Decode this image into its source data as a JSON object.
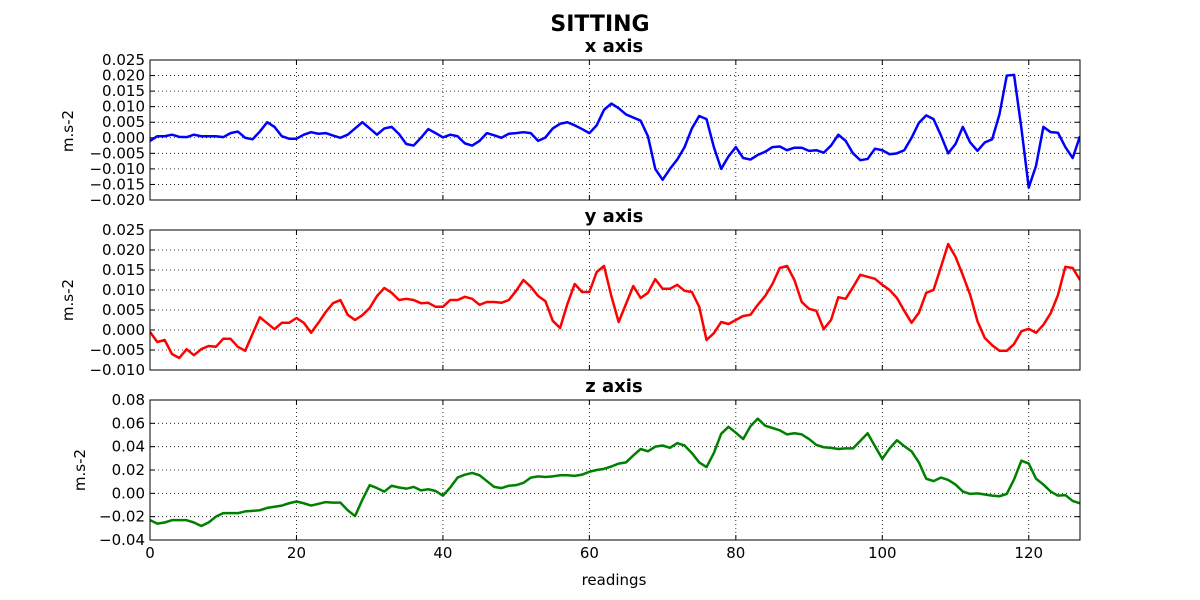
{
  "figure": {
    "title": "SITTING",
    "xlabel": "readings"
  },
  "chart_data": [
    {
      "type": "line",
      "title": "x axis",
      "xlabel": "",
      "ylabel": "m.s-2",
      "xlim": [
        0,
        127
      ],
      "ylim": [
        -0.02,
        0.025
      ],
      "grid": true,
      "xticks": [
        0,
        20,
        40,
        60,
        80,
        100,
        120
      ],
      "xticklabels": [],
      "yticks": [
        -0.02,
        -0.015,
        -0.01,
        -0.005,
        0.0,
        0.005,
        0.01,
        0.015,
        0.02,
        0.025
      ],
      "yticklabels": [
        "−0.020",
        "−0.015",
        "−0.010",
        "−0.005",
        "0.000",
        "0.005",
        "0.010",
        "0.015",
        "0.020",
        "0.025"
      ],
      "series": [
        {
          "color": "#0000ff",
          "x": [
            0,
            1,
            2,
            3,
            4,
            5,
            6,
            7,
            8,
            9,
            10,
            11,
            12,
            13,
            14,
            15,
            16,
            17,
            18,
            19,
            20,
            21,
            22,
            23,
            24,
            25,
            26,
            27,
            28,
            29,
            30,
            31,
            32,
            33,
            34,
            35,
            36,
            37,
            38,
            39,
            40,
            41,
            42,
            43,
            44,
            45,
            46,
            47,
            48,
            49,
            50,
            51,
            52,
            53,
            54,
            55,
            56,
            57,
            58,
            59,
            60,
            61,
            62,
            63,
            64,
            65,
            66,
            67,
            68,
            69,
            70,
            71,
            72,
            73,
            74,
            75,
            76,
            77,
            78,
            79,
            80,
            81,
            82,
            83,
            84,
            85,
            86,
            87,
            88,
            89,
            90,
            91,
            92,
            93,
            94,
            95,
            96,
            97,
            98,
            99,
            100,
            101,
            102,
            103,
            104,
            105,
            106,
            107,
            108,
            109,
            110,
            111,
            112,
            113,
            114,
            115,
            116,
            117,
            118,
            119,
            120,
            121,
            122,
            123,
            124,
            125,
            126,
            127
          ],
          "values": [
            -0.001,
            0.0005,
            0.0005,
            0.001,
            0.0003,
            0.0002,
            0.001,
            0.0005,
            0.0005,
            0.0005,
            0.0002,
            0.0015,
            0.002,
            0.0,
            -0.0005,
            0.002,
            0.005,
            0.0035,
            0.0005,
            -0.0003,
            -0.0003,
            0.001,
            0.0018,
            0.0013,
            0.0015,
            0.0007,
            0.0,
            0.001,
            0.003,
            0.005,
            0.003,
            0.001,
            0.003,
            0.0035,
            0.0012,
            -0.002,
            -0.0025,
            0.0,
            0.0028,
            0.0015,
            0.0001,
            0.001,
            0.0005,
            -0.0018,
            -0.0025,
            -0.001,
            0.0015,
            0.0008,
            0.0,
            0.0013,
            0.0015,
            0.0018,
            0.0015,
            -0.001,
            0.0001,
            0.003,
            0.0045,
            0.005,
            0.004,
            0.0028,
            0.0015,
            0.004,
            0.009,
            0.011,
            0.0095,
            0.0075,
            0.0065,
            0.0055,
            0.0005,
            -0.01,
            -0.0135,
            -0.01,
            -0.007,
            -0.003,
            0.003,
            0.007,
            0.006,
            -0.003,
            -0.01,
            -0.006,
            -0.003,
            -0.0065,
            -0.007,
            -0.0055,
            -0.0045,
            -0.003,
            -0.0028,
            -0.004,
            -0.0032,
            -0.0032,
            -0.0042,
            -0.004,
            -0.0048,
            -0.0025,
            0.001,
            -0.001,
            -0.005,
            -0.0072,
            -0.0068,
            -0.0035,
            -0.004,
            -0.0053,
            -0.005,
            -0.004,
            0.0,
            0.0048,
            0.0072,
            0.006,
            0.0008,
            -0.005,
            -0.002,
            0.0035,
            -0.0015,
            -0.0042,
            -0.0015,
            -0.0005,
            0.0075,
            0.02,
            0.0202,
            0.003,
            -0.016,
            -0.009,
            0.0035,
            0.0018,
            0.0016,
            -0.003,
            -0.0065,
            0.0005
          ]
        }
      ]
    },
    {
      "type": "line",
      "title": "y axis",
      "xlabel": "",
      "ylabel": "m.s-2",
      "xlim": [
        0,
        127
      ],
      "ylim": [
        -0.01,
        0.025
      ],
      "grid": true,
      "xticks": [
        0,
        20,
        40,
        60,
        80,
        100,
        120
      ],
      "xticklabels": [],
      "yticks": [
        -0.01,
        -0.005,
        0.0,
        0.005,
        0.01,
        0.015,
        0.02,
        0.025
      ],
      "yticklabels": [
        "−0.010",
        "−0.005",
        "0.000",
        "0.005",
        "0.010",
        "0.015",
        "0.020",
        "0.025"
      ],
      "series": [
        {
          "color": "#ff0000",
          "x": [
            0,
            1,
            2,
            3,
            4,
            5,
            6,
            7,
            8,
            9,
            10,
            11,
            12,
            13,
            14,
            15,
            16,
            17,
            18,
            19,
            20,
            21,
            22,
            23,
            24,
            25,
            26,
            27,
            28,
            29,
            30,
            31,
            32,
            33,
            34,
            35,
            36,
            37,
            38,
            39,
            40,
            41,
            42,
            43,
            44,
            45,
            46,
            47,
            48,
            49,
            50,
            51,
            52,
            53,
            54,
            55,
            56,
            57,
            58,
            59,
            60,
            61,
            62,
            63,
            64,
            65,
            66,
            67,
            68,
            69,
            70,
            71,
            72,
            73,
            74,
            75,
            76,
            77,
            78,
            79,
            80,
            81,
            82,
            83,
            84,
            85,
            86,
            87,
            88,
            89,
            90,
            91,
            92,
            93,
            94,
            95,
            96,
            97,
            98,
            99,
            100,
            101,
            102,
            103,
            104,
            105,
            106,
            107,
            108,
            109,
            110,
            111,
            112,
            113,
            114,
            115,
            116,
            117,
            118,
            119,
            120,
            121,
            122,
            123,
            124,
            125,
            126,
            127
          ],
          "values": [
            -0.0005,
            -0.003,
            -0.0025,
            -0.006,
            -0.007,
            -0.0048,
            -0.0063,
            -0.0048,
            -0.004,
            -0.0042,
            -0.0022,
            -0.0022,
            -0.0042,
            -0.0052,
            -0.001,
            0.0032,
            0.0017,
            0.0002,
            0.0018,
            0.0018,
            0.003,
            0.0018,
            -0.0007,
            0.0018,
            0.0045,
            0.0067,
            0.0075,
            0.0038,
            0.0025,
            0.0037,
            0.0055,
            0.0085,
            0.0105,
            0.0093,
            0.0075,
            0.0078,
            0.0075,
            0.0067,
            0.0068,
            0.0058,
            0.0058,
            0.0075,
            0.0075,
            0.0083,
            0.0078,
            0.0063,
            0.007,
            0.007,
            0.0068,
            0.0075,
            0.0098,
            0.0125,
            0.0108,
            0.0085,
            0.0072,
            0.0023,
            0.0005,
            0.0065,
            0.0115,
            0.0095,
            0.0095,
            0.0145,
            0.016,
            0.0085,
            0.002,
            0.0065,
            0.011,
            0.008,
            0.0093,
            0.0127,
            0.0103,
            0.0103,
            0.0113,
            0.0098,
            0.0095,
            0.0058,
            -0.0025,
            -0.0008,
            0.002,
            0.0015,
            0.0025,
            0.0035,
            0.0038,
            0.0063,
            0.0085,
            0.0115,
            0.0155,
            0.016,
            0.0125,
            0.007,
            0.0053,
            0.0048,
            0.0002,
            0.0025,
            0.0082,
            0.0078,
            0.0107,
            0.0138,
            0.0133,
            0.0128,
            0.0113,
            0.01,
            0.008,
            0.0048,
            0.0018,
            0.0043,
            0.0093,
            0.01,
            0.0157,
            0.0215,
            0.0183,
            0.0137,
            0.0088,
            0.0022,
            -0.002,
            -0.0038,
            -0.0052,
            -0.0052,
            -0.0035,
            -0.0003,
            0.0003,
            -0.0007,
            0.0013,
            0.0042,
            0.0088,
            0.0158,
            0.0155,
            0.0125
          ]
        }
      ]
    },
    {
      "type": "line",
      "title": "z axis",
      "xlabel": "readings",
      "ylabel": "m.s-2",
      "xlim": [
        0,
        127
      ],
      "ylim": [
        -0.04,
        0.08
      ],
      "grid": true,
      "xticks": [
        0,
        20,
        40,
        60,
        80,
        100,
        120
      ],
      "xticklabels": [
        "0",
        "20",
        "40",
        "60",
        "80",
        "100",
        "120"
      ],
      "yticks": [
        -0.04,
        -0.02,
        0.0,
        0.02,
        0.04,
        0.06,
        0.08
      ],
      "yticklabels": [
        "−0.04",
        "−0.02",
        "0.00",
        "0.02",
        "0.04",
        "0.06",
        "0.08"
      ],
      "series": [
        {
          "color": "#008000",
          "x": [
            0,
            1,
            2,
            3,
            4,
            5,
            6,
            7,
            8,
            9,
            10,
            11,
            12,
            13,
            14,
            15,
            16,
            17,
            18,
            19,
            20,
            21,
            22,
            23,
            24,
            25,
            26,
            27,
            28,
            29,
            30,
            31,
            32,
            33,
            34,
            35,
            36,
            37,
            38,
            39,
            40,
            41,
            42,
            43,
            44,
            45,
            46,
            47,
            48,
            49,
            50,
            51,
            52,
            53,
            54,
            55,
            56,
            57,
            58,
            59,
            60,
            61,
            62,
            63,
            64,
            65,
            66,
            67,
            68,
            69,
            70,
            71,
            72,
            73,
            74,
            75,
            76,
            77,
            78,
            79,
            80,
            81,
            82,
            83,
            84,
            85,
            86,
            87,
            88,
            89,
            90,
            91,
            92,
            93,
            94,
            95,
            96,
            97,
            98,
            99,
            100,
            101,
            102,
            103,
            104,
            105,
            106,
            107,
            108,
            109,
            110,
            111,
            112,
            113,
            114,
            115,
            116,
            117,
            118,
            119,
            120,
            121,
            122,
            123,
            124,
            125,
            126,
            127
          ],
          "values": [
            -0.023,
            -0.026,
            -0.025,
            -0.023,
            -0.023,
            -0.023,
            -0.025,
            -0.028,
            -0.025,
            -0.02,
            -0.017,
            -0.017,
            -0.017,
            -0.0155,
            -0.015,
            -0.0145,
            -0.0125,
            -0.0115,
            -0.0105,
            -0.0085,
            -0.007,
            -0.0085,
            -0.0105,
            -0.009,
            -0.0075,
            -0.008,
            -0.008,
            -0.0145,
            -0.0195,
            -0.0055,
            0.007,
            0.0045,
            0.0015,
            0.0065,
            0.005,
            0.004,
            0.0055,
            0.0025,
            0.0035,
            0.002,
            -0.002,
            0.005,
            0.0135,
            0.016,
            0.0175,
            0.0155,
            0.0105,
            0.0055,
            0.0045,
            0.0065,
            0.007,
            0.009,
            0.0135,
            0.0145,
            0.014,
            0.0145,
            0.0155,
            0.0155,
            0.015,
            0.016,
            0.0185,
            0.02,
            0.021,
            0.023,
            0.0255,
            0.0265,
            0.0325,
            0.038,
            0.036,
            0.04,
            0.041,
            0.039,
            0.043,
            0.041,
            0.0345,
            0.0265,
            0.0225,
            0.0345,
            0.051,
            0.057,
            0.052,
            0.0465,
            0.0575,
            0.064,
            0.058,
            0.056,
            0.054,
            0.0505,
            0.0515,
            0.0505,
            0.0465,
            0.0415,
            0.0395,
            0.039,
            0.038,
            0.0385,
            0.0385,
            0.045,
            0.0515,
            0.0405,
            0.0295,
            0.0385,
            0.0455,
            0.0405,
            0.036,
            0.0265,
            0.0125,
            0.0105,
            0.0135,
            0.0115,
            0.0075,
            0.0015,
            -0.0005,
            0.0,
            -0.001,
            -0.002,
            -0.0025,
            -0.0005,
            0.012,
            0.028,
            0.0255,
            0.0125,
            0.0075,
            0.0015,
            -0.002,
            -0.0015,
            -0.0065,
            -0.0085
          ]
        }
      ]
    }
  ]
}
